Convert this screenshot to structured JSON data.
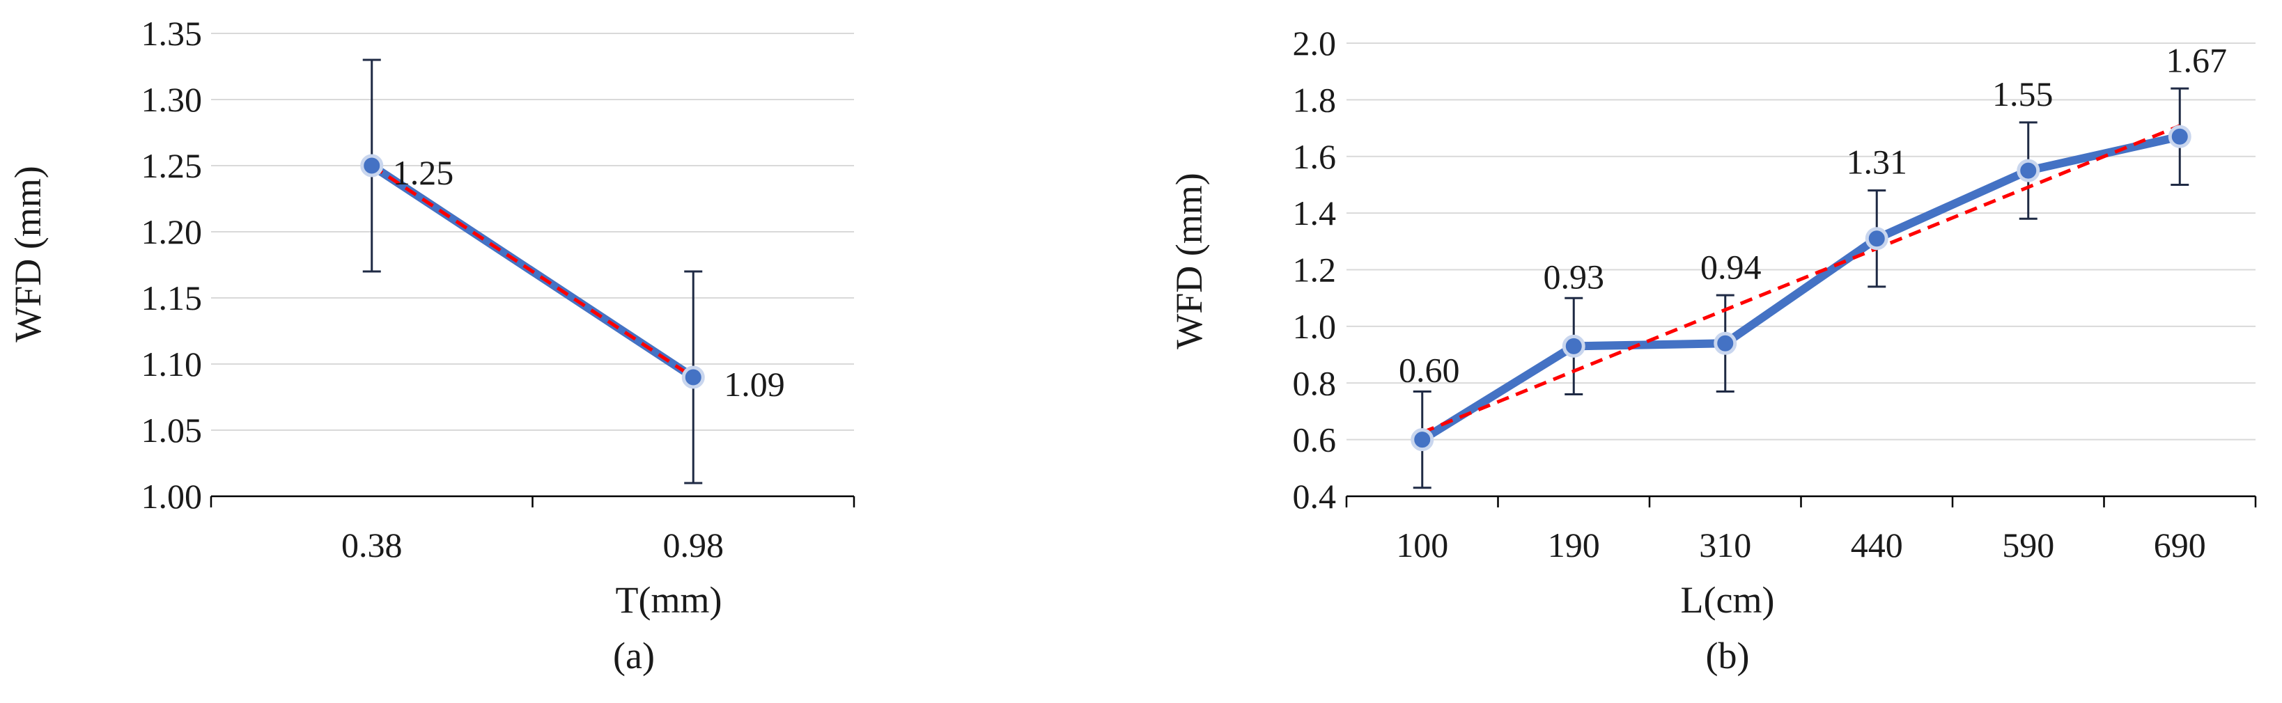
{
  "colors": {
    "series_line": "#4472c4",
    "trend_line": "#ff0000",
    "marker_fill": "#4472c4",
    "marker_stroke": "#c9d6ee",
    "error_bar": "#1f2a44",
    "grid": "#d9d9d9",
    "axis": "#000000"
  },
  "chart_data": [
    {
      "id": "a",
      "type": "line",
      "categories": [
        "0.38",
        "0.98"
      ],
      "series": [
        {
          "values": [
            1.25,
            1.09
          ],
          "error": [
            0.08,
            0.08
          ]
        }
      ],
      "trendline": "linear",
      "data_labels": [
        "1.25",
        "1.09"
      ],
      "xlabel": "T(mm)",
      "ylabel": "WFD (mm)",
      "caption": "(a)",
      "ylim": [
        1.0,
        1.35
      ],
      "yticks": [
        "1.00",
        "1.05",
        "1.10",
        "1.15",
        "1.20",
        "1.25",
        "1.30",
        "1.35"
      ],
      "grid": true
    },
    {
      "id": "b",
      "type": "line",
      "categories": [
        "100",
        "190",
        "310",
        "440",
        "590",
        "690"
      ],
      "series": [
        {
          "values": [
            0.6,
            0.93,
            0.94,
            1.31,
            1.55,
            1.67
          ],
          "error": [
            0.17,
            0.17,
            0.17,
            0.17,
            0.17,
            0.17
          ]
        }
      ],
      "trendline": "linear",
      "data_labels": [
        "0.60",
        "0.93",
        "0.94",
        "1.31",
        "1.55",
        "1.67"
      ],
      "xlabel": "L(cm)",
      "ylabel": "WFD (mm)",
      "caption": "(b)",
      "ylim": [
        0.4,
        2.0
      ],
      "yticks": [
        "0.4",
        "0.6",
        "0.8",
        "1.0",
        "1.2",
        "1.4",
        "1.6",
        "1.8",
        "2.0"
      ],
      "grid": true
    }
  ]
}
